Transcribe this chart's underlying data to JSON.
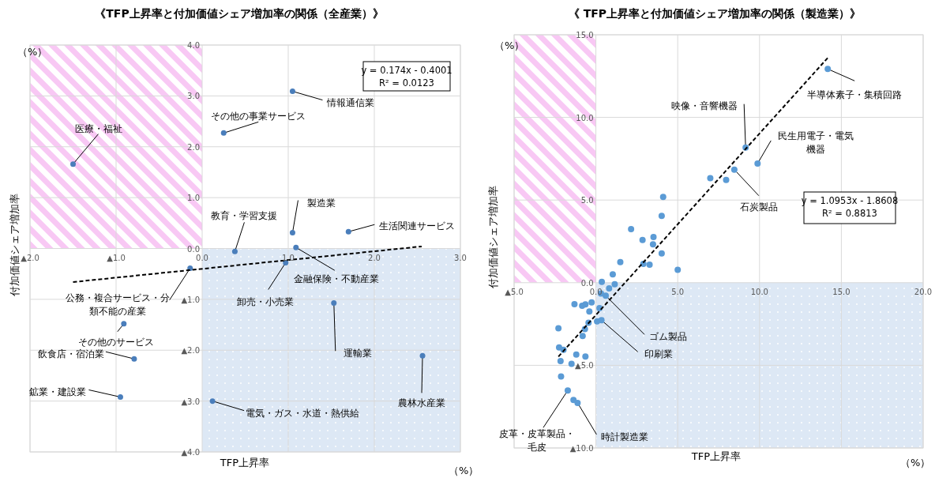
{
  "chart_data": [
    {
      "type": "scatter",
      "title": "《TFP上昇率と付加価値シェア増加率の関係（全産業）》",
      "xlabel": "TFP上昇率",
      "ylabel": "付加価値シェア増加率",
      "grid": true,
      "xlim": [
        -2,
        3
      ],
      "ylim": [
        -4,
        4
      ],
      "xticks": [
        {
          "value": -2,
          "label": "▲2.0"
        },
        {
          "value": -1,
          "label": "▲1.0"
        },
        {
          "value": 0,
          "label": "0.0"
        },
        {
          "value": 1,
          "label": "1.0"
        },
        {
          "value": 2,
          "label": "2.0"
        },
        {
          "value": 3,
          "label": "3.0"
        }
      ],
      "yticks": [
        {
          "value": -4,
          "label": "▲4.0"
        },
        {
          "value": -3,
          "label": "▲3.0"
        },
        {
          "value": -2,
          "label": "▲2.0"
        },
        {
          "value": -1,
          "label": "▲1.0"
        },
        {
          "value": 0,
          "label": "0.0"
        },
        {
          "value": 1,
          "label": "1.0"
        },
        {
          "value": 2,
          "label": "2.0"
        },
        {
          "value": 3,
          "label": "3.0"
        },
        {
          "value": 4,
          "label": "4.0"
        }
      ],
      "series": [
        {
          "type": "scatter",
          "marker": "circle",
          "color": "#4a7ebb",
          "x": [
            -1.5,
            0.25,
            1.05,
            0.38,
            1.05,
            1.7,
            1.09,
            0.97,
            -0.14,
            -0.91,
            -0.79,
            -0.95,
            0.12,
            1.53,
            2.56
          ],
          "values": [
            1.66,
            2.27,
            3.09,
            -0.06,
            0.31,
            0.33,
            0.02,
            -0.28,
            -0.39,
            -1.48,
            -2.17,
            -2.92,
            -3.0,
            -1.07,
            -2.11
          ]
        },
        {
          "type": "line",
          "line_style": "dashed",
          "color": "#000000",
          "x": [
            -1.5,
            2.55
          ],
          "values": [
            -0.66,
            0.04
          ]
        }
      ],
      "annotations": [
        {
          "text": "医療・福祉",
          "x": -1.5,
          "y": 1.66
        },
        {
          "text": "その他の事業サービス",
          "x": 0.25,
          "y": 2.27
        },
        {
          "text": "情報通信業",
          "x": 1.05,
          "y": 3.09
        },
        {
          "text": "教育・学習支援",
          "x": 0.38,
          "y": -0.06
        },
        {
          "text": "製造業",
          "x": 1.05,
          "y": 0.31
        },
        {
          "text": "生活関連サービス",
          "x": 1.7,
          "y": 0.33
        },
        {
          "text": "金融保険・不動産業",
          "x": 1.09,
          "y": 0.02
        },
        {
          "text": "卸売・小売業",
          "x": 0.97,
          "y": -0.28
        },
        {
          "text": "公務・複合サービス・分類不能の産業",
          "x": -0.14,
          "y": -0.39
        },
        {
          "text": "その他のサービス",
          "x": -0.91,
          "y": -1.48
        },
        {
          "text": "飲食店・宿泊業",
          "x": -0.79,
          "y": -2.17
        },
        {
          "text": "鉱業・建設業",
          "x": -0.95,
          "y": -2.92
        },
        {
          "text": "電気・ガス・水道・熱供給",
          "x": 0.12,
          "y": -3.0
        },
        {
          "text": "運輸業",
          "x": 1.53,
          "y": -1.07
        },
        {
          "text": "農林水産業",
          "x": 2.56,
          "y": -2.11
        },
        "（%）",
        "（%）",
        "y = 0.174x - 0.4001",
        "R² = 0.0123"
      ]
    },
    {
      "type": "scatter",
      "title": "《 TFP上昇率と付加価値シェア増加率の関係（製造業）》",
      "xlabel": "TFP上昇率",
      "ylabel": "付加価値シェア増加率",
      "grid": true,
      "xlim": [
        -5,
        20
      ],
      "ylim": [
        -10,
        15
      ],
      "xticks": [
        {
          "value": -5,
          "label": "▲5.0"
        },
        {
          "value": 0,
          "label": "0.0"
        },
        {
          "value": 5,
          "label": "5.0"
        },
        {
          "value": 10,
          "label": "10.0"
        },
        {
          "value": 15,
          "label": "15.0"
        },
        {
          "value": 20,
          "label": "20.0"
        }
      ],
      "yticks": [
        {
          "value": -10,
          "label": "▲10.0"
        },
        {
          "value": -5,
          "label": "▲5.0"
        },
        {
          "value": 0,
          "label": "0.0"
        },
        {
          "value": 5,
          "label": "5.0"
        },
        {
          "value": 10,
          "label": "10.0"
        },
        {
          "value": 15,
          "label": "15.0"
        }
      ],
      "series": [
        {
          "type": "scatter",
          "marker": "circle",
          "color": "#5b9bd5",
          "x": [
            14.17,
            9.15,
            9.88,
            8.46,
            0.6,
            0.34,
            -1.72,
            -1.12,
            0.36,
            1.15,
            1.03,
            0.81,
            0.31,
            1.49,
            2.15,
            2.85,
            3.52,
            3.49,
            4.11,
            4.02,
            4.02,
            2.9,
            3.28,
            5.0,
            -0.26,
            -0.64,
            -0.84,
            -1.31,
            -0.4,
            0.22,
            -0.45,
            0.07,
            -0.67,
            -0.81,
            -2.29,
            -2.25,
            -1.98,
            -1.2,
            -0.64,
            -2.16,
            -1.49,
            -2.13,
            -1.37,
            6.99,
            7.96
          ],
          "values": [
            12.93,
            8.18,
            7.21,
            6.84,
            -0.79,
            -2.27,
            -6.52,
            -7.27,
            0.05,
            -0.09,
            0.51,
            -0.34,
            -0.65,
            1.25,
            3.24,
            2.58,
            2.76,
            2.32,
            5.19,
            4.04,
            1.77,
            1.14,
            1.09,
            0.78,
            -1.19,
            -1.31,
            -1.4,
            -1.3,
            -1.74,
            -1.54,
            -2.42,
            -2.34,
            -2.8,
            -3.23,
            -2.76,
            -3.92,
            -4.06,
            -4.35,
            -4.47,
            -4.74,
            -4.91,
            -5.67,
            -7.1,
            6.33,
            6.22
          ]
        },
        {
          "type": "line",
          "line_style": "dashed",
          "color": "#000000",
          "x": [
            -2.29,
            14.22
          ],
          "values": [
            -4.47,
            13.66
          ]
        }
      ],
      "annotations": [
        {
          "text": "半導体素子・集積回路",
          "x": 14.17,
          "y": 12.93
        },
        {
          "text": "映像・音響機器",
          "x": 9.15,
          "y": 8.18
        },
        {
          "text": "民生用電子・電気機器",
          "x": 9.88,
          "y": 7.21
        },
        {
          "text": "石炭製品",
          "x": 8.46,
          "y": 6.84
        },
        {
          "text": "ゴム製品",
          "x": 0.6,
          "y": -0.79
        },
        {
          "text": "印刷業",
          "x": 0.34,
          "y": -2.27
        },
        {
          "text": "皮革・皮革製品・毛皮",
          "x": -1.72,
          "y": -6.52
        },
        {
          "text": "時計製造業",
          "x": -1.12,
          "y": -7.27
        },
        "（%）",
        "（%）",
        "y = 1.0953x - 1.8608",
        "R² = 0.8813"
      ]
    }
  ]
}
